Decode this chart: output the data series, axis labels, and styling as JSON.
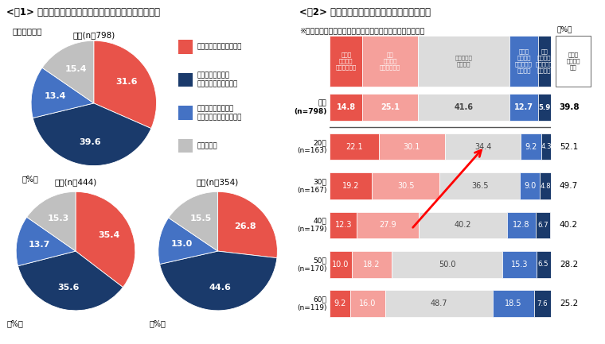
{
  "fig1_title": "<図1> 収入が多少減っても、休日が増えるほうがよいか",
  "fig1_subtitle": "（単一回答）",
  "fig2_title": "<図2> 休日が増えると生産性があがると思うか",
  "fig2_subtitle": "※給料の額、仕事の内容・量は変わらない場合（単一回答）",
  "pie_colors": [
    "#e8534a",
    "#1a3a6b",
    "#4472c4",
    "#c0c0c0"
  ],
  "pie_labels": [
    "休日が増えるほうがいい",
    "収入が減るなら、\n休日は増えなくていい",
    "休日を減らしても、\n収入が増えるほうがいい",
    "わからない"
  ],
  "pie_overall": [
    31.6,
    39.6,
    13.4,
    15.4
  ],
  "pie_male": [
    35.4,
    35.6,
    13.7,
    15.3
  ],
  "pie_female": [
    26.8,
    44.6,
    13.0,
    15.5
  ],
  "pie_overall_label": "全体(n＝798)",
  "pie_male_label": "男性(n＝444)",
  "pie_female_label": "女性(n＝354)",
  "bar_col_headers": [
    "とても\n生産性が\nあがると思う",
    "まあ\n生産性が\nあがると思う",
    "どちらとも\nいえない",
    "あまり\n生産性が\nあがるとは\n思わない",
    "全く\n生産性が\nあがるとは\n思わない",
    "生産性\nがあがる\n・計"
  ],
  "bar_rows": [
    {
      "label": "全体\n(n=798)",
      "values": [
        14.8,
        25.1,
        41.6,
        12.7,
        5.9
      ],
      "total": 39.8,
      "bold": true
    },
    {
      "label": "20代\n(n=163)",
      "values": [
        22.1,
        30.1,
        34.4,
        9.2,
        4.3
      ],
      "total": 52.1,
      "bold": false
    },
    {
      "label": "30代\n(n=167)",
      "values": [
        19.2,
        30.5,
        36.5,
        9.0,
        4.8
      ],
      "total": 49.7,
      "bold": false
    },
    {
      "label": "40代\n(n=179)",
      "values": [
        12.3,
        27.9,
        40.2,
        12.8,
        6.7
      ],
      "total": 40.2,
      "bold": false
    },
    {
      "label": "50代\n(n=170)",
      "values": [
        10.0,
        18.2,
        50.0,
        15.3,
        6.5
      ],
      "total": 28.2,
      "bold": false
    },
    {
      "label": "60代\n(n=119)",
      "values": [
        9.2,
        16.0,
        48.7,
        18.5,
        7.6
      ],
      "total": 25.2,
      "bold": false
    }
  ],
  "bar_colors5": [
    "#e8534a",
    "#f5a09b",
    "#dcdcdc",
    "#4472c4",
    "#1a3a6b"
  ],
  "bar_text_colors": [
    "white",
    "white",
    "#444444",
    "white",
    "white"
  ],
  "bar_header_colors": [
    "#e8534a",
    "#f5a09b",
    "#dcdcdc",
    "#4472c4",
    "#1a3a6b"
  ],
  "bar_header_text": [
    "white",
    "white",
    "#555555",
    "white",
    "white"
  ],
  "bg_color": "#ffffff",
  "pct_label": "（%）"
}
